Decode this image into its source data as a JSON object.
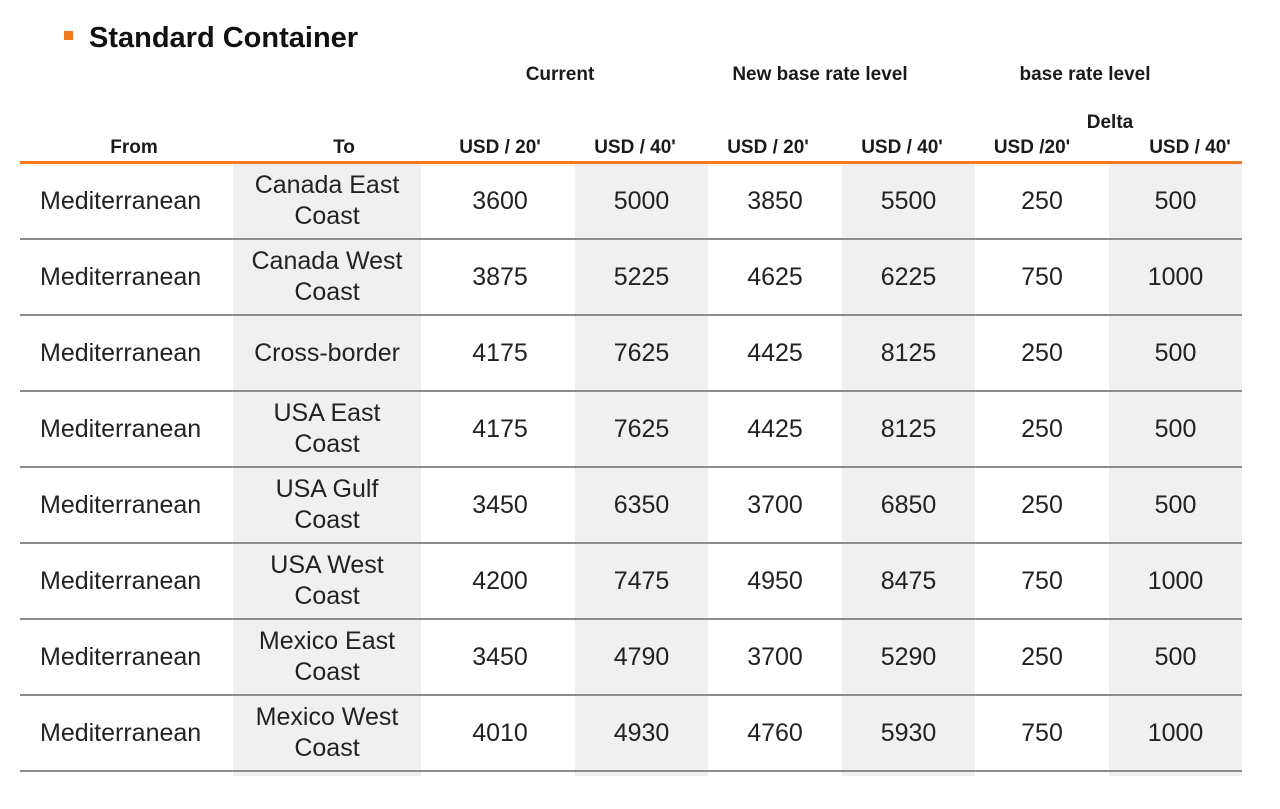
{
  "title": "Standard Container",
  "headers": {
    "current": "Current",
    "new_base": "New base rate level",
    "base_level": "base rate level",
    "delta": "Delta",
    "from": "From",
    "to": "To",
    "usd20": "USD / 20'",
    "usd40": "USD / 40'",
    "usd20_delta": "USD /20'",
    "usd40_delta": "USD / 40'"
  },
  "rows": [
    {
      "from": "Mediterranean",
      "to": "Canada East Coast",
      "cur20": "3600",
      "cur40": "5000",
      "new20": "3850",
      "new40": "5500",
      "d20": "250",
      "d40": "500"
    },
    {
      "from": "Mediterranean",
      "to": "Canada West Coast",
      "cur20": "3875",
      "cur40": "5225",
      "new20": "4625",
      "new40": "6225",
      "d20": "750",
      "d40": "1000"
    },
    {
      "from": "Mediterranean",
      "to": "Cross-border",
      "cur20": "4175",
      "cur40": "7625",
      "new20": "4425",
      "new40": "8125",
      "d20": "250",
      "d40": "500"
    },
    {
      "from": "Mediterranean",
      "to": "USA East Coast",
      "cur20": "4175",
      "cur40": "7625",
      "new20": "4425",
      "new40": "8125",
      "d20": "250",
      "d40": "500"
    },
    {
      "from": "Mediterranean",
      "to": "USA Gulf Coast",
      "cur20": "3450",
      "cur40": "6350",
      "new20": "3700",
      "new40": "6850",
      "d20": "250",
      "d40": "500"
    },
    {
      "from": "Mediterranean",
      "to": "USA West Coast",
      "cur20": "4200",
      "cur40": "7475",
      "new20": "4950",
      "new40": "8475",
      "d20": "750",
      "d40": "1000"
    },
    {
      "from": "Mediterranean",
      "to": "Mexico East Coast",
      "cur20": "3450",
      "cur40": "4790",
      "new20": "3700",
      "new40": "5290",
      "d20": "250",
      "d40": "500"
    },
    {
      "from": "Mediterranean",
      "to": "Mexico West Coast",
      "cur20": "4010",
      "cur40": "4930",
      "new20": "4760",
      "new40": "5930",
      "d20": "750",
      "d40": "1000"
    }
  ]
}
